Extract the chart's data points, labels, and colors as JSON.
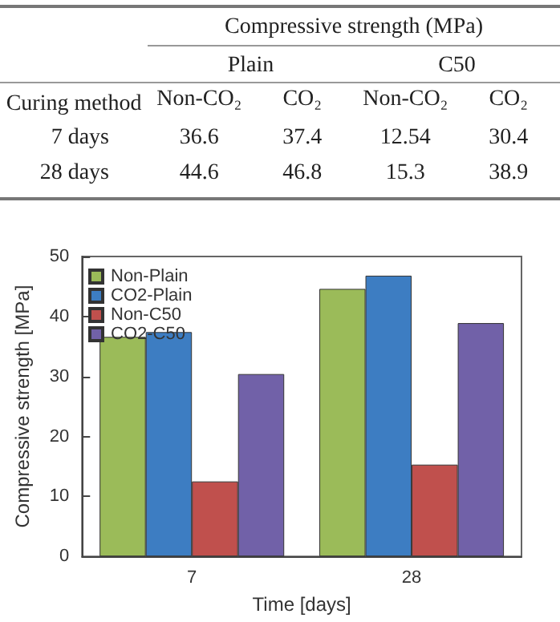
{
  "chart_data": [
    {
      "type": "heatmap",
      "title": "Compressive strength (MPa)",
      "ylabel": "Curing method",
      "annotations": [
        "Plain",
        "C50"
      ],
      "categories": [
        "Non-CO₂",
        "CO₂",
        "Non-CO₂",
        "CO₂"
      ],
      "y_categories": [
        "7 days",
        "28 days"
      ],
      "cells": [
        [
          36.6,
          37.4,
          12.54,
          30.4
        ],
        [
          44.6,
          46.8,
          15.3,
          38.9
        ]
      ],
      "color": "#ffffff",
      "data_labels": true
    },
    {
      "type": "bar",
      "xlabel": "Time [days]",
      "ylabel": "Compressive strength [MPa]",
      "categories": [
        "7",
        "28"
      ],
      "series": [
        {
          "name": "Non-Plain",
          "color": "#9bbb59",
          "values": [
            36.6,
            44.6
          ]
        },
        {
          "name": "CO2-Plain",
          "color": "#3d7dc2",
          "values": [
            37.4,
            46.8
          ]
        },
        {
          "name": "Non-C50",
          "color": "#c0504d",
          "values": [
            12.5,
            15.3
          ]
        },
        {
          "name": "CO2-C50",
          "color": "#7161a8",
          "values": [
            30.4,
            38.9
          ]
        }
      ],
      "ylim": [
        0,
        50
      ],
      "yticks": [
        0,
        10,
        20,
        30,
        40,
        50
      ],
      "grid": false,
      "legend": "top left"
    }
  ]
}
